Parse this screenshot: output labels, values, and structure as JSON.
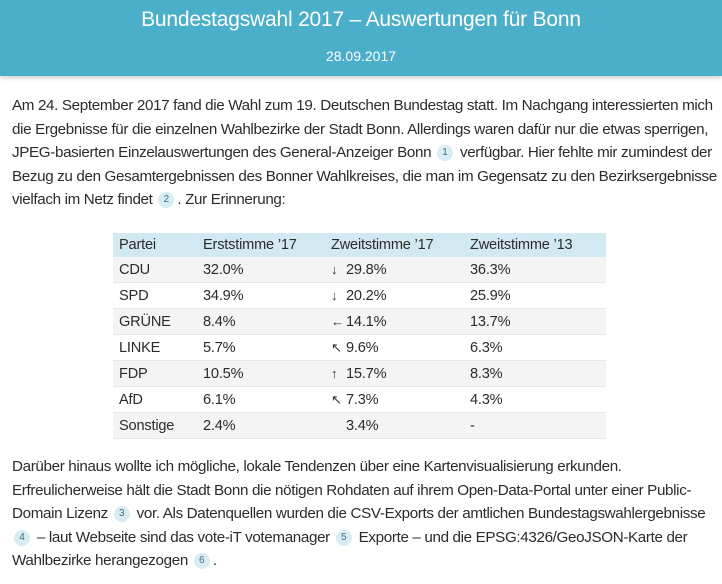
{
  "header": {
    "title": "Bundestagswahl 2017 – Auswertungen für Bonn",
    "date": "28.09.2017",
    "color": "#4bafc9"
  },
  "intro": {
    "s1": "Am 24. September 2017 fand die Wahl zum 19. Deutschen Bundestag statt. Im Nachgang interessierten mich die Ergebnisse für die einzelnen Wahlbezirke der Stadt Bonn. Allerdings waren dafür nur die etwas sperrigen, JPEG-basierten Einzelauswertungen des General-Anzeiger Bonn",
    "fn1": "1",
    "s2": " verfügbar. Hier fehlte mir zumindest der Bezug zu den Gesamtergebnissen des Bonner Wahlkreises, die man im Gegensatz zu den Bezirksergebnisse vielfach im Netz findet",
    "fn2": "2",
    "s3": ". Zur Erinnerung:"
  },
  "table": {
    "headers": [
      "Partei",
      "Erststimme ’17",
      "Zweitstimme ’17",
      "Zweitstimme ’13"
    ],
    "rows": [
      {
        "party": "CDU",
        "erst17": "32.0%",
        "arrow": "↓",
        "zweit17": "29.8%",
        "zweit13": "36.3%"
      },
      {
        "party": "SPD",
        "erst17": "34.9%",
        "arrow": "↓",
        "zweit17": "20.2%",
        "zweit13": "25.9%"
      },
      {
        "party": "GRÜNE",
        "erst17": "8.4%",
        "arrow": "←",
        "zweit17": "14.1%",
        "zweit13": "13.7%"
      },
      {
        "party": "LINKE",
        "erst17": "5.7%",
        "arrow": "↖",
        "zweit17": "9.6%",
        "zweit13": "6.3%"
      },
      {
        "party": "FDP",
        "erst17": "10.5%",
        "arrow": "↑",
        "zweit17": "15.7%",
        "zweit13": "8.3%"
      },
      {
        "party": "AfD",
        "erst17": "6.1%",
        "arrow": "↖",
        "zweit17": "7.3%",
        "zweit13": "4.3%"
      },
      {
        "party": "Sonstige",
        "erst17": "2.4%",
        "arrow": "",
        "zweit17": "3.4%",
        "zweit13": "-"
      }
    ]
  },
  "outro": {
    "s1": "Darüber hinaus wollte ich mögliche, lokale Tendenzen über eine Kartenvisualisierung erkunden. Erfreulicherweise hält die Stadt Bonn die nötigen Rohdaten auf ihrem Open-Data-Portal unter einer Public-Domain Lizenz",
    "fn3": "3",
    "s2": " vor. Als Datenquellen wurden die CSV-Exports der amtlichen Bundestagswahlergebnisse",
    "fn4": "4",
    "s3": " – laut Webseite sind das vote-iT votemanager",
    "fn5": "5",
    "s4": " Exporte – und die EPSG:4326/GeoJSON-Karte der Wahlbezirke herangezogen",
    "fn6": "6",
    "s5": "."
  }
}
